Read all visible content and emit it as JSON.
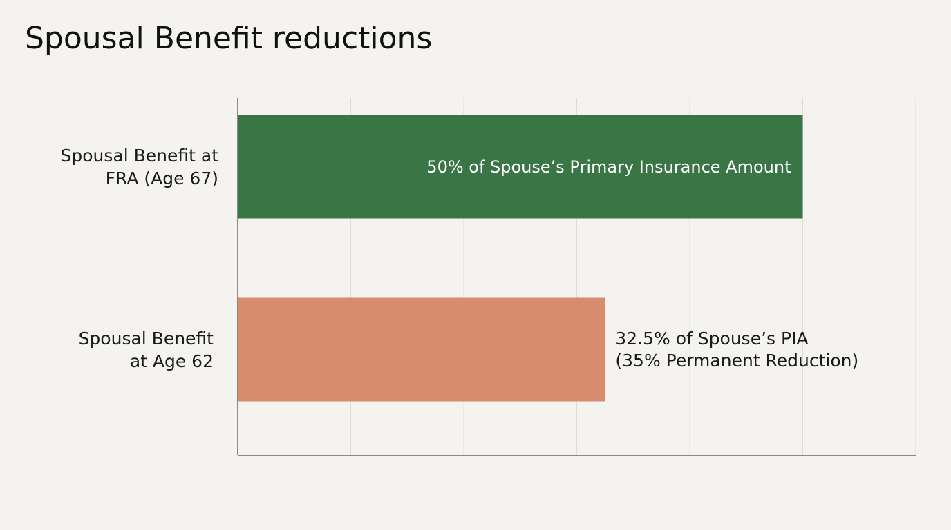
{
  "chart_data": {
    "type": "hbar",
    "title": "Spousal Benefit reductions",
    "categories": [
      "Spousal Benefit at\nFRA (Age 67)",
      "Spousal Benefit\nat Age 62"
    ],
    "values": [
      50,
      32.5
    ],
    "value_labels": [
      "50% of Spouse’s Primary Insurance Amount",
      "32.5% of Spouse’s PIA\n(35% Permanent Reduction)"
    ],
    "colors": [
      "#3a7645",
      "#d98b6e"
    ],
    "xlim": [
      0,
      60
    ],
    "xticks": [
      0,
      10,
      20,
      30,
      40,
      50,
      60
    ],
    "grid": true
  }
}
